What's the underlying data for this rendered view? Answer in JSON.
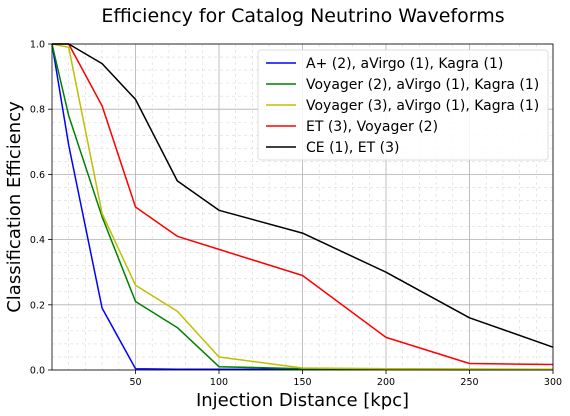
{
  "chart_data": {
    "type": "line",
    "title": "Efficiency for Catalog Neutrino Waveforms",
    "xlabel": "Injection Distance [kpc]",
    "ylabel": "Classification Efficiency",
    "xlim": [
      0,
      300
    ],
    "ylim": [
      0,
      1.0
    ],
    "xticks": [
      50,
      100,
      150,
      200,
      250,
      300
    ],
    "yticks": [
      0.0,
      0.2,
      0.4,
      0.6,
      0.8,
      1.0
    ],
    "ytick_labels": [
      "0.0",
      "0.2",
      "0.4",
      "0.6",
      "0.8",
      "1.0"
    ],
    "grid": "major and minor, dashed",
    "legend_position": "top-right",
    "series": [
      {
        "name": "A+ (2), aVirgo (1), Kagra (1)",
        "color": "#0000ff",
        "x": [
          0,
          10,
          30,
          50,
          75,
          100,
          150,
          200,
          250,
          300
        ],
        "y": [
          1.0,
          0.69,
          0.19,
          0.004,
          0.002,
          0.002,
          0.002,
          0.002,
          0.001,
          0.001
        ]
      },
      {
        "name": "Voyager (2), aVirgo (1), Kagra (1)",
        "color": "#008000",
        "x": [
          0,
          10,
          30,
          50,
          75,
          100,
          150,
          200,
          250,
          300
        ],
        "y": [
          1.0,
          0.78,
          0.47,
          0.21,
          0.13,
          0.01,
          0.004,
          0.003,
          0.002,
          0.002
        ]
      },
      {
        "name": "Voyager (3), aVirgo (1), Kagra (1)",
        "color": "#bfbf00",
        "x": [
          0,
          10,
          30,
          50,
          75,
          100,
          150,
          200,
          250,
          300
        ],
        "y": [
          1.0,
          0.99,
          0.48,
          0.26,
          0.18,
          0.04,
          0.006,
          0.004,
          0.003,
          0.002
        ]
      },
      {
        "name": "ET (3), Voyager (2)",
        "color": "#ff0000",
        "x": [
          0,
          10,
          30,
          50,
          75,
          100,
          150,
          200,
          250,
          300
        ],
        "y": [
          1.0,
          1.0,
          0.81,
          0.5,
          0.41,
          0.37,
          0.29,
          0.1,
          0.02,
          0.017
        ]
      },
      {
        "name": "CE (1), ET (3)",
        "color": "#000000",
        "x": [
          0,
          10,
          30,
          50,
          75,
          100,
          150,
          200,
          250,
          300
        ],
        "y": [
          1.0,
          1.0,
          0.94,
          0.83,
          0.58,
          0.49,
          0.42,
          0.3,
          0.16,
          0.07
        ]
      }
    ]
  }
}
